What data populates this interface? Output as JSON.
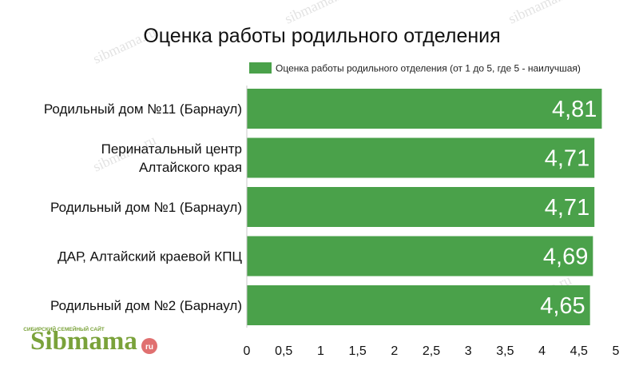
{
  "chart_data": {
    "type": "bar",
    "orientation": "horizontal",
    "title": "Оценка работы родильного отделения",
    "legend": {
      "position": "top-right",
      "entries": [
        "Оценка работы родильного отделения (от 1 до 5, где 5 - наилучшая)"
      ]
    },
    "categories": [
      [
        "Родильный дом №11 (Барнаул)"
      ],
      [
        "Перинатальный центр",
        "Алтайского края"
      ],
      [
        "Родильный дом №1 (Барнаул)"
      ],
      [
        "ДАР, Алтайский краевой КПЦ"
      ],
      [
        "Родильный дом №2 (Барнаул)"
      ]
    ],
    "series": [
      {
        "name": "Оценка работы родильного отделения (от 1 до 5, где 5 - наилучшая)",
        "values": [
          4.81,
          4.71,
          4.71,
          4.69,
          4.65
        ],
        "data_labels": [
          "4,81",
          "4,71",
          "4,71",
          "4,69",
          "4,65"
        ],
        "color": "#4aa14a"
      }
    ],
    "x_ticks": [
      "0",
      "0,5",
      "1",
      "1,5",
      "2",
      "2,5",
      "3",
      "3,5",
      "4",
      "4,5",
      "5"
    ],
    "xlim": [
      0,
      5
    ],
    "grid": false,
    "xlabel": "",
    "ylabel": ""
  },
  "watermark": "sibmama.ru",
  "logo": {
    "tagline": "СИБИРСКИЙ СЕМЕЙНЫЙ САЙТ",
    "brand": "Sibmama",
    "suffix": "ru"
  }
}
